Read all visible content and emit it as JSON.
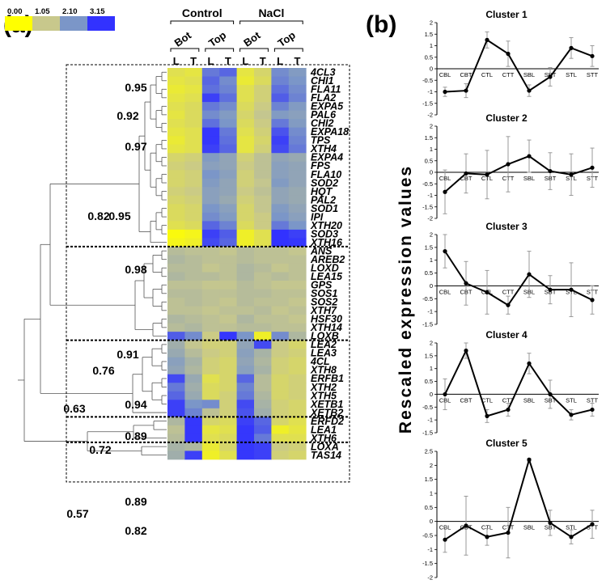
{
  "panel_labels": {
    "a": "(a)",
    "b": "(b)"
  },
  "colors": {
    "scale": [
      "#ffff00",
      "#c8c88c",
      "#7b96c8",
      "#3232ff"
    ],
    "line": "#000000",
    "error": "#999999"
  },
  "chart_data": [
    {
      "type": "heatmap",
      "title": "",
      "color_scale": {
        "ticks": [
          "0.00",
          "1.05",
          "2.10",
          "3.15"
        ],
        "min": 0,
        "max": 3.15
      },
      "conditions": [
        "Control",
        "NaCl"
      ],
      "levels": [
        "Bot",
        "Top",
        "Bot",
        "Top"
      ],
      "columns": [
        "L",
        "T",
        "L",
        "T",
        "L",
        "T",
        "L",
        "T"
      ],
      "rows": [
        "4CL3",
        "CHI1",
        "FLA11",
        "FLA2",
        "EXPA5",
        "PAL6",
        "CHI2",
        "EXPA18",
        "TPS",
        "XTH4",
        "EXPA4",
        "FPS",
        "FLA10",
        "SOD2",
        "HQT",
        "PAL2",
        "SOD1",
        "IPI",
        "XTH20",
        "SOD3",
        "XTH16",
        "ANS",
        "AREB2",
        "LOXD",
        "LEA15",
        "GPS",
        "SOS1",
        "SOS2",
        "XTH7",
        "HSF30",
        "XTH14",
        "LOXB",
        "LEA2",
        "LEA3",
        "4CL",
        "XTH8",
        "ERFB1",
        "XTH2",
        "XTH5",
        "XETB1",
        "XETB2",
        "ERFD2",
        "LEA1",
        "XTH6",
        "LOXA",
        "TAS14"
      ],
      "values": [
        [
          0.6,
          0.5,
          2.4,
          2.6,
          0.5,
          0.8,
          2.2,
          2.0
        ],
        [
          0.5,
          0.6,
          2.6,
          2.2,
          0.4,
          0.7,
          2.3,
          2.1
        ],
        [
          0.4,
          0.5,
          2.5,
          2.3,
          0.6,
          0.9,
          2.5,
          2.2
        ],
        [
          0.5,
          0.6,
          3.0,
          2.5,
          0.6,
          0.9,
          2.7,
          2.3
        ],
        [
          0.6,
          0.7,
          2.4,
          2.2,
          0.7,
          1.0,
          2.3,
          2.0
        ],
        [
          0.5,
          0.7,
          2.2,
          2.0,
          0.8,
          1.1,
          2.0,
          1.9
        ],
        [
          0.6,
          0.7,
          2.5,
          2.1,
          0.7,
          1.0,
          2.4,
          2.0
        ],
        [
          0.5,
          0.6,
          3.1,
          2.4,
          0.6,
          0.9,
          2.8,
          2.2
        ],
        [
          0.4,
          0.6,
          3.1,
          2.5,
          0.5,
          0.8,
          3.0,
          2.3
        ],
        [
          0.5,
          0.6,
          3.0,
          2.6,
          0.5,
          0.9,
          2.9,
          2.4
        ],
        [
          0.8,
          0.9,
          2.0,
          1.8,
          0.9,
          1.2,
          1.8,
          1.7
        ],
        [
          0.9,
          1.0,
          1.9,
          1.8,
          1.0,
          1.2,
          1.9,
          1.8
        ],
        [
          0.8,
          0.9,
          2.1,
          1.9,
          0.9,
          1.2,
          1.9,
          1.8
        ],
        [
          0.8,
          0.9,
          2.0,
          1.8,
          0.9,
          1.1,
          2.0,
          1.8
        ],
        [
          0.9,
          1.0,
          1.9,
          1.8,
          1.0,
          1.2,
          1.8,
          1.7
        ],
        [
          0.8,
          0.9,
          1.9,
          1.7,
          0.9,
          1.1,
          1.8,
          1.7
        ],
        [
          0.7,
          0.8,
          2.1,
          1.9,
          0.8,
          1.1,
          2.0,
          1.8
        ],
        [
          0.7,
          0.8,
          2.2,
          2.0,
          0.8,
          1.0,
          2.1,
          1.9
        ],
        [
          0.6,
          0.7,
          2.6,
          2.3,
          0.7,
          1.0,
          2.4,
          2.1
        ],
        [
          0.1,
          0.2,
          3.0,
          2.7,
          0.3,
          0.6,
          3.15,
          3.0
        ],
        [
          0.2,
          0.3,
          2.9,
          2.6,
          0.3,
          0.6,
          3.15,
          3.1
        ],
        [
          1.3,
          1.2,
          1.2,
          1.1,
          1.3,
          1.2,
          1.2,
          1.1
        ],
        [
          1.4,
          1.3,
          1.2,
          1.2,
          1.3,
          1.2,
          1.2,
          1.2
        ],
        [
          1.3,
          1.3,
          1.1,
          1.2,
          1.4,
          1.3,
          1.1,
          1.2
        ],
        [
          1.4,
          1.3,
          1.3,
          1.2,
          1.4,
          1.2,
          1.3,
          1.2
        ],
        [
          1.2,
          1.2,
          1.1,
          1.1,
          1.3,
          1.2,
          1.1,
          1.1
        ],
        [
          1.3,
          1.3,
          1.2,
          1.2,
          1.3,
          1.3,
          1.2,
          1.2
        ],
        [
          1.2,
          1.3,
          1.2,
          1.1,
          1.3,
          1.2,
          1.2,
          1.1
        ],
        [
          1.2,
          1.2,
          1.1,
          1.2,
          1.2,
          1.3,
          1.1,
          1.2
        ],
        [
          1.4,
          1.3,
          1.2,
          1.1,
          1.4,
          1.2,
          1.2,
          1.1
        ],
        [
          1.3,
          1.4,
          1.2,
          1.2,
          1.3,
          1.3,
          1.2,
          1.2
        ],
        [
          2.7,
          2.2,
          1.0,
          3.1,
          2.1,
          0.3,
          2.2,
          1.4
        ],
        [
          1.6,
          1.1,
          0.9,
          0.9,
          1.8,
          2.9,
          1.0,
          0.8
        ],
        [
          1.7,
          1.3,
          1.0,
          0.9,
          1.9,
          1.5,
          1.0,
          0.9
        ],
        [
          1.9,
          1.5,
          0.9,
          0.8,
          1.8,
          1.4,
          0.9,
          0.8
        ],
        [
          1.8,
          1.4,
          0.9,
          0.8,
          1.9,
          1.5,
          0.9,
          0.8
        ],
        [
          2.9,
          1.7,
          0.6,
          0.8,
          2.6,
          1.3,
          0.8,
          0.9
        ],
        [
          2.4,
          1.6,
          0.7,
          0.8,
          2.3,
          1.3,
          0.8,
          0.9
        ],
        [
          2.6,
          1.7,
          0.7,
          0.9,
          2.4,
          1.4,
          0.8,
          0.9
        ],
        [
          3.0,
          2.1,
          2.2,
          0.9,
          2.9,
          1.5,
          0.9,
          0.8
        ],
        [
          3.0,
          2.3,
          1.2,
          0.9,
          2.8,
          1.6,
          0.9,
          0.8
        ],
        [
          1.4,
          3.1,
          0.8,
          0.7,
          3.0,
          2.6,
          0.8,
          0.6
        ],
        [
          1.2,
          3.1,
          0.5,
          0.6,
          3.1,
          2.7,
          0.3,
          0.5
        ],
        [
          1.3,
          3.1,
          0.6,
          0.7,
          3.1,
          2.4,
          0.6,
          0.6
        ],
        [
          1.5,
          1.4,
          0.4,
          0.8,
          3.1,
          3.0,
          1.0,
          0.9
        ],
        [
          1.6,
          3.0,
          0.3,
          0.6,
          3.1,
          3.0,
          0.9,
          0.8
        ]
      ],
      "bootstrap_labels": [
        "0.95",
        "0.92",
        "0.97",
        "0.82",
        "0.95",
        "0.98",
        "0.91",
        "0.76",
        "0.63",
        "0.94",
        "0.89",
        "0.72",
        "0.89",
        "0.57",
        "0.82"
      ]
    },
    {
      "type": "line",
      "ylabel": "Rescaled expression values",
      "categories": [
        "CBL",
        "CBT",
        "CTL",
        "CTT",
        "SBL",
        "SBT",
        "STL",
        "STT"
      ],
      "panels": [
        {
          "title": "Cluster 1",
          "ylim": [
            -2,
            2
          ],
          "yticks": [
            "2",
            "1.5",
            "1",
            "0.5",
            "0",
            "-0.5",
            "-1",
            "-1.5",
            "-2"
          ],
          "values": [
            -1.0,
            -0.95,
            1.25,
            0.65,
            -0.95,
            -0.35,
            0.9,
            0.55
          ],
          "errors": [
            0.2,
            0.3,
            0.35,
            0.55,
            0.25,
            0.4,
            0.45,
            0.45
          ]
        },
        {
          "title": "Cluster 2",
          "ylim": [
            -2,
            2
          ],
          "yticks": [
            "2",
            "1.5",
            "1",
            "0.5",
            "0",
            "-0.5",
            "-1",
            "-1.5",
            "-2"
          ],
          "values": [
            -0.85,
            -0.05,
            -0.1,
            0.35,
            0.7,
            0.05,
            -0.1,
            0.2
          ],
          "errors": [
            0.95,
            0.85,
            1.05,
            1.2,
            0.7,
            0.8,
            0.9,
            0.85
          ]
        },
        {
          "title": "Cluster 3",
          "ylim": [
            -1.5,
            2
          ],
          "yticks": [
            "2",
            "1.5",
            "1",
            "0.5",
            "0",
            "-0.5",
            "-1",
            "-1.5"
          ],
          "values": [
            1.35,
            0.1,
            -0.25,
            -0.75,
            0.45,
            -0.15,
            -0.15,
            -0.55
          ],
          "errors": [
            0.65,
            0.85,
            0.85,
            0.35,
            0.9,
            0.55,
            1.05,
            0.55
          ]
        },
        {
          "title": "Cluster 4",
          "ylim": [
            -1.5,
            2
          ],
          "yticks": [
            "2",
            "1.5",
            "1",
            "0.5",
            "0",
            "-0.5",
            "-1",
            "-1.5"
          ],
          "values": [
            0.0,
            1.7,
            -0.85,
            -0.6,
            1.2,
            0.0,
            -0.8,
            -0.6
          ],
          "errors": [
            0.6,
            0.3,
            0.25,
            0.25,
            0.4,
            0.55,
            0.2,
            0.25
          ]
        },
        {
          "title": "Cluster 5",
          "ylim": [
            -2,
            2.5
          ],
          "yticks": [
            "2.5",
            "2",
            "1.5",
            "1",
            "0.5",
            "0",
            "-0.5",
            "-1",
            "-1.5",
            "-2"
          ],
          "values": [
            -0.65,
            -0.15,
            -0.55,
            -0.4,
            2.2,
            -0.05,
            -0.55,
            -0.1
          ],
          "errors": [
            0.45,
            1.05,
            0.3,
            0.9,
            0.05,
            0.45,
            0.25,
            0.5
          ]
        }
      ]
    }
  ]
}
